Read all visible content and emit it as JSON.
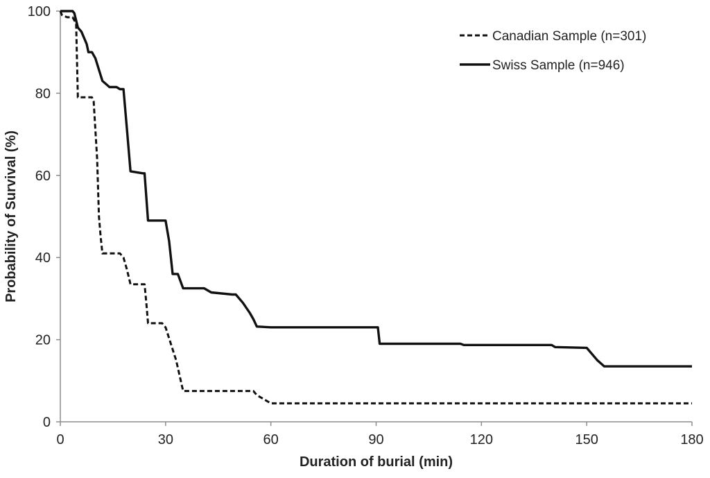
{
  "chart_data": {
    "type": "line",
    "title": "",
    "xlabel": "Duration of burial (min)",
    "ylabel": "Probability of Survival (%)",
    "xlim": [
      0,
      180
    ],
    "ylim": [
      0,
      100
    ],
    "xticks": [
      "0",
      "30",
      "60",
      "90",
      "120",
      "150",
      "180"
    ],
    "yticks": [
      "0",
      "20",
      "40",
      "60",
      "80",
      "100"
    ],
    "grid": false,
    "legend_position": "top-right",
    "series": [
      {
        "name": "Canadian Sample (n=301)",
        "style": "dashed",
        "color": "#111111",
        "x": [
          0,
          0.5,
          2,
          3.5,
          4.5,
          5,
          9,
          9.5,
          10.5,
          11,
          11.5,
          12,
          17,
          18,
          19,
          20,
          24,
          24.5,
          25,
          29,
          30,
          33,
          35,
          55,
          56,
          59,
          60,
          180
        ],
        "y": [
          100,
          99,
          98.5,
          98.5,
          97,
          79,
          79,
          78,
          64,
          50,
          45,
          41,
          41,
          40,
          37,
          33.5,
          33.5,
          29,
          24,
          24,
          23,
          15,
          7.5,
          7.5,
          6.5,
          5,
          4.5,
          4.5
        ]
      },
      {
        "name": "Swiss Sample (n=946)",
        "style": "solid",
        "color": "#111111",
        "x": [
          0,
          3.5,
          4,
          5,
          6,
          7.5,
          8,
          9,
          10,
          12,
          14,
          16,
          17,
          18,
          19,
          20,
          23.5,
          24,
          25,
          30,
          31,
          32,
          33.5,
          35,
          41,
          43,
          49,
          50,
          52,
          54,
          55,
          56,
          60,
          90,
          90.5,
          91,
          114,
          115,
          140,
          141,
          150,
          153,
          155,
          180
        ],
        "y": [
          100,
          100,
          99.5,
          96,
          95,
          92,
          90,
          90,
          88.5,
          83,
          81.5,
          81.5,
          81,
          81,
          71,
          61,
          60.5,
          60.5,
          49,
          49,
          44,
          36,
          36,
          32.5,
          32.5,
          31.5,
          31,
          31,
          29,
          26.5,
          25,
          23.2,
          23,
          23,
          23,
          19,
          19,
          18.7,
          18.7,
          18.2,
          18,
          15,
          13.5,
          13.5
        ]
      }
    ]
  }
}
